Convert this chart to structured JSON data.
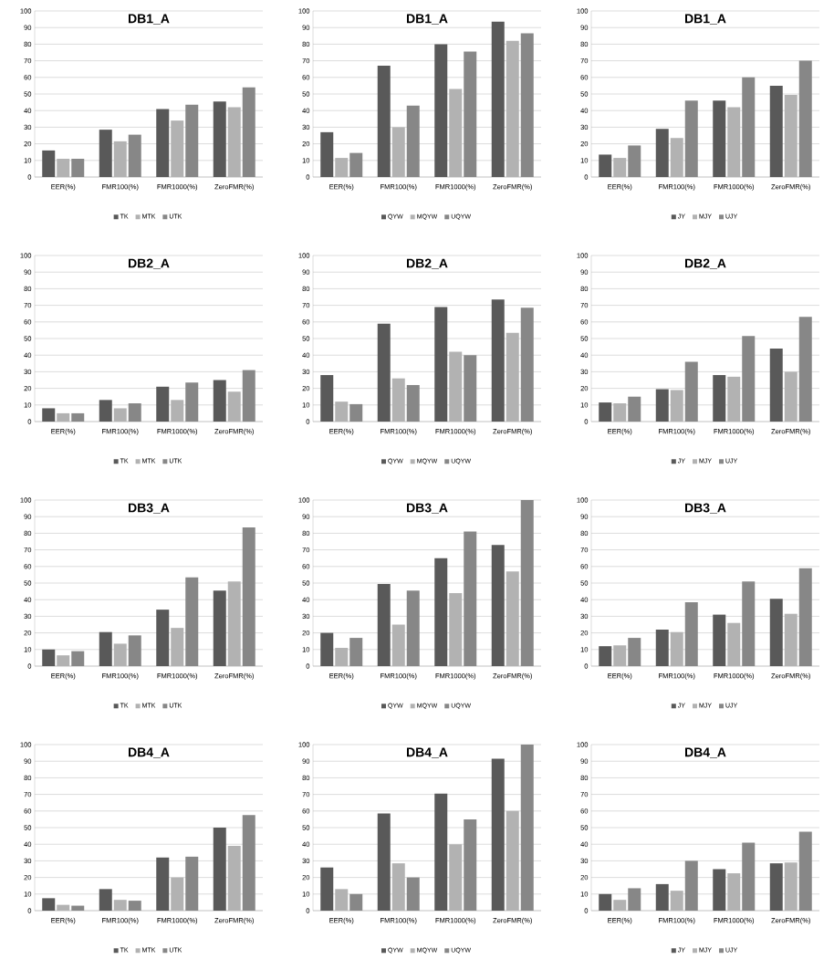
{
  "chart_data": [
    {
      "type": "bar",
      "title": "DB1_A",
      "categories": [
        "EER(%)",
        "FMR100(%)",
        "FMR1000(%)",
        "ZeroFMR(%)"
      ],
      "ylim": [
        0,
        100
      ],
      "yticks": [
        0,
        10,
        20,
        30,
        40,
        50,
        60,
        70,
        80,
        90,
        100
      ],
      "grid": "y",
      "legend": "bottom",
      "series": [
        {
          "name": "TK",
          "color": "#595959",
          "values": [
            16,
            28.5,
            41,
            45.5
          ]
        },
        {
          "name": "MTK",
          "color": "#b2b2b2",
          "values": [
            11,
            21.5,
            34,
            42
          ]
        },
        {
          "name": "UTK",
          "color": "#878787",
          "values": [
            11,
            25.5,
            43.5,
            54
          ]
        }
      ]
    },
    {
      "type": "bar",
      "title": "DB1_A",
      "categories": [
        "EER(%)",
        "FMR100(%)",
        "FMR1000(%)",
        "ZeroFMR(%)"
      ],
      "ylim": [
        0,
        100
      ],
      "yticks": [
        0,
        10,
        20,
        30,
        40,
        50,
        60,
        70,
        80,
        90,
        100
      ],
      "grid": "y",
      "legend": "bottom",
      "series": [
        {
          "name": "QYW",
          "color": "#595959",
          "values": [
            27,
            67,
            80,
            93.5
          ]
        },
        {
          "name": "MQYW",
          "color": "#b2b2b2",
          "values": [
            11.5,
            30,
            53,
            82
          ]
        },
        {
          "name": "UQYW",
          "color": "#878787",
          "values": [
            14.5,
            43,
            75.5,
            86.5
          ]
        }
      ]
    },
    {
      "type": "bar",
      "title": "DB1_A",
      "categories": [
        "EER(%)",
        "FMR100(%)",
        "FMR1000(%)",
        "ZeroFMR(%)"
      ],
      "ylim": [
        0,
        100
      ],
      "yticks": [
        0,
        10,
        20,
        30,
        40,
        50,
        60,
        70,
        80,
        90,
        100
      ],
      "grid": "y",
      "legend": "bottom",
      "series": [
        {
          "name": "JY",
          "color": "#595959",
          "values": [
            13.5,
            29,
            46,
            55
          ]
        },
        {
          "name": "MJY",
          "color": "#b2b2b2",
          "values": [
            11.5,
            23.5,
            42,
            49.5
          ]
        },
        {
          "name": "UJY",
          "color": "#878787",
          "values": [
            19,
            46,
            60,
            70
          ]
        }
      ]
    },
    {
      "type": "bar",
      "title": "DB2_A",
      "categories": [
        "EER(%)",
        "FMR100(%)",
        "FMR1000(%)",
        "ZeroFMR(%)"
      ],
      "ylim": [
        0,
        100
      ],
      "yticks": [
        0,
        10,
        20,
        30,
        40,
        50,
        60,
        70,
        80,
        90,
        100
      ],
      "grid": "y",
      "legend": "bottom",
      "series": [
        {
          "name": "TK",
          "color": "#595959",
          "values": [
            8,
            13,
            21,
            25
          ]
        },
        {
          "name": "MTK",
          "color": "#b2b2b2",
          "values": [
            5,
            8,
            13,
            18
          ]
        },
        {
          "name": "UTK",
          "color": "#878787",
          "values": [
            5,
            11,
            23.5,
            31
          ]
        }
      ]
    },
    {
      "type": "bar",
      "title": "DB2_A",
      "categories": [
        "EER(%)",
        "FMR100(%)",
        "FMR1000(%)",
        "ZeroFMR(%)"
      ],
      "ylim": [
        0,
        100
      ],
      "yticks": [
        0,
        10,
        20,
        30,
        40,
        50,
        60,
        70,
        80,
        90,
        100
      ],
      "grid": "y",
      "legend": "bottom",
      "series": [
        {
          "name": "QYW",
          "color": "#595959",
          "values": [
            28,
            59,
            69,
            73.5
          ]
        },
        {
          "name": "MQYW",
          "color": "#b2b2b2",
          "values": [
            12,
            26,
            42,
            53.5
          ]
        },
        {
          "name": "UQYW",
          "color": "#878787",
          "values": [
            10.5,
            22,
            40,
            68.5
          ]
        }
      ]
    },
    {
      "type": "bar",
      "title": "DB2_A",
      "categories": [
        "EER(%)",
        "FMR100(%)",
        "FMR1000(%)",
        "ZeroFMR(%)"
      ],
      "ylim": [
        0,
        100
      ],
      "yticks": [
        0,
        10,
        20,
        30,
        40,
        50,
        60,
        70,
        80,
        90,
        100
      ],
      "grid": "y",
      "legend": "bottom",
      "series": [
        {
          "name": "JY",
          "color": "#595959",
          "values": [
            11.5,
            19.5,
            28,
            44
          ]
        },
        {
          "name": "MJY",
          "color": "#b2b2b2",
          "values": [
            11,
            19,
            27,
            30
          ]
        },
        {
          "name": "UJY",
          "color": "#878787",
          "values": [
            15,
            36,
            51.5,
            63
          ]
        }
      ]
    },
    {
      "type": "bar",
      "title": "DB3_A",
      "categories": [
        "EER(%)",
        "FMR100(%)",
        "FMR1000(%)",
        "ZeroFMR(%)"
      ],
      "ylim": [
        0,
        100
      ],
      "yticks": [
        0,
        10,
        20,
        30,
        40,
        50,
        60,
        70,
        80,
        90,
        100
      ],
      "grid": "y",
      "legend": "bottom",
      "series": [
        {
          "name": "TK",
          "color": "#595959",
          "values": [
            10,
            20.5,
            34,
            45.5
          ]
        },
        {
          "name": "MTK",
          "color": "#b2b2b2",
          "values": [
            6.5,
            13.5,
            23,
            51
          ]
        },
        {
          "name": "UTK",
          "color": "#878787",
          "values": [
            9,
            18.5,
            53.5,
            83.5
          ]
        }
      ]
    },
    {
      "type": "bar",
      "title": "DB3_A",
      "categories": [
        "EER(%)",
        "FMR100(%)",
        "FMR1000(%)",
        "ZeroFMR(%)"
      ],
      "ylim": [
        0,
        100
      ],
      "yticks": [
        0,
        10,
        20,
        30,
        40,
        50,
        60,
        70,
        80,
        90,
        100
      ],
      "grid": "y",
      "legend": "bottom",
      "series": [
        {
          "name": "QYW",
          "color": "#595959",
          "values": [
            20,
            49.5,
            65,
            73
          ]
        },
        {
          "name": "MQYW",
          "color": "#b2b2b2",
          "values": [
            11,
            25,
            44,
            57
          ]
        },
        {
          "name": "UQYW",
          "color": "#878787",
          "values": [
            17,
            45.5,
            81,
            100
          ]
        }
      ]
    },
    {
      "type": "bar",
      "title": "DB3_A",
      "categories": [
        "EER(%)",
        "FMR100(%)",
        "FMR1000(%)",
        "ZeroFMR(%)"
      ],
      "ylim": [
        0,
        100
      ],
      "yticks": [
        0,
        10,
        20,
        30,
        40,
        50,
        60,
        70,
        80,
        90,
        100
      ],
      "grid": "y",
      "legend": "bottom",
      "series": [
        {
          "name": "JY",
          "color": "#595959",
          "values": [
            12,
            22,
            31,
            40.5
          ]
        },
        {
          "name": "MJY",
          "color": "#b2b2b2",
          "values": [
            12.5,
            20.5,
            26,
            31.5
          ]
        },
        {
          "name": "UJY",
          "color": "#878787",
          "values": [
            17,
            38.5,
            51,
            59
          ]
        }
      ]
    },
    {
      "type": "bar",
      "title": "DB4_A",
      "categories": [
        "EER(%)",
        "FMR100(%)",
        "FMR1000(%)",
        "ZeroFMR(%)"
      ],
      "ylim": [
        0,
        100
      ],
      "yticks": [
        0,
        10,
        20,
        30,
        40,
        50,
        60,
        70,
        80,
        90,
        100
      ],
      "grid": "y",
      "legend": "bottom",
      "series": [
        {
          "name": "TK",
          "color": "#595959",
          "values": [
            7.5,
            13,
            32,
            50
          ]
        },
        {
          "name": "MTK",
          "color": "#b2b2b2",
          "values": [
            3.5,
            6.5,
            20,
            39
          ]
        },
        {
          "name": "UTK",
          "color": "#878787",
          "values": [
            3,
            6,
            32.5,
            57.5
          ]
        }
      ]
    },
    {
      "type": "bar",
      "title": "DB4_A",
      "categories": [
        "EER(%)",
        "FMR100(%)",
        "FMR1000(%)",
        "ZeroFMR(%)"
      ],
      "ylim": [
        0,
        100
      ],
      "yticks": [
        0,
        10,
        20,
        30,
        40,
        50,
        60,
        70,
        80,
        90,
        100
      ],
      "grid": "y",
      "legend": "bottom",
      "series": [
        {
          "name": "QYW",
          "color": "#595959",
          "values": [
            26,
            58.5,
            70.5,
            91.5
          ]
        },
        {
          "name": "MQYW",
          "color": "#b2b2b2",
          "values": [
            13,
            28.5,
            40,
            60
          ]
        },
        {
          "name": "UQYW",
          "color": "#878787",
          "values": [
            10,
            20,
            55,
            100
          ]
        }
      ]
    },
    {
      "type": "bar",
      "title": "DB4_A",
      "categories": [
        "EER(%)",
        "FMR100(%)",
        "FMR1000(%)",
        "ZeroFMR(%)"
      ],
      "ylim": [
        0,
        100
      ],
      "yticks": [
        0,
        10,
        20,
        30,
        40,
        50,
        60,
        70,
        80,
        90,
        100
      ],
      "grid": "y",
      "legend": "bottom",
      "series": [
        {
          "name": "JY",
          "color": "#595959",
          "values": [
            10,
            16,
            25,
            28.5
          ]
        },
        {
          "name": "MJY",
          "color": "#b2b2b2",
          "values": [
            6.5,
            12,
            22.5,
            29
          ]
        },
        {
          "name": "UJY",
          "color": "#878787",
          "values": [
            13.5,
            30,
            41,
            47.5
          ]
        }
      ]
    }
  ]
}
